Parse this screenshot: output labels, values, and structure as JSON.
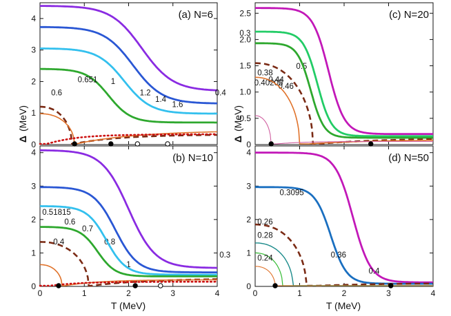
{
  "chart_data": [
    {
      "panel": "a",
      "type": "line",
      "title": "(a) N=6",
      "xlim": [
        0,
        4
      ],
      "ylim": [
        0,
        4.5
      ],
      "xticks": [],
      "yticks": [
        "0",
        "1",
        "2",
        "3",
        "4"
      ],
      "series": [
        {
          "name": "1.6",
          "label": "1.6",
          "color": "#8a2be2",
          "width": 2.8,
          "style": "solid",
          "D0": 4.4,
          "Dinf": 1.7,
          "Tc": 2.3,
          "w": 0.35
        },
        {
          "name": "1.4",
          "label": "1.4",
          "color": "#2a57d4",
          "width": 2.8,
          "style": "solid",
          "D0": 3.73,
          "Dinf": 1.3,
          "Tc": 2.1,
          "w": 0.33
        },
        {
          "name": "1.2",
          "label": "1.2",
          "color": "#33c0ee",
          "width": 2.8,
          "style": "solid",
          "D0": 3.05,
          "Dinf": 0.98,
          "Tc": 1.9,
          "w": 0.3
        },
        {
          "name": "1",
          "label": "1",
          "color": "#2ea82e",
          "width": 2.8,
          "style": "solid",
          "D0": 2.4,
          "Dinf": 0.7,
          "Tc": 1.55,
          "w": 0.25
        },
        {
          "name": "0.651",
          "label": "0.651",
          "color": "#7a2a14",
          "width": 2.6,
          "style": "dashed",
          "D0": 1.2,
          "Tc": 0.72,
          "Dinf": 0.32,
          "Tr": 1.05
        },
        {
          "name": "0.6",
          "label": "0.6",
          "color": "#e0722a",
          "width": 1.6,
          "style": "solid",
          "D0": 0.98,
          "Tc": 0.78,
          "Dinf": 0.45,
          "Tr": 1.4
        },
        {
          "name": "0.4",
          "label": "0.4",
          "color": "#cc1111",
          "width": 2.6,
          "style": "dotted",
          "D0": 0,
          "Dinf": 0.35,
          "Tr": 0.5
        }
      ],
      "points": [
        {
          "T": 0.78,
          "fill": "black"
        },
        {
          "T": 1.6,
          "fill": "black"
        },
        {
          "T": 2.2,
          "fill": "white"
        },
        {
          "T": 2.88,
          "fill": "white"
        }
      ]
    },
    {
      "panel": "b",
      "type": "line",
      "title": "(b) N=10",
      "xlim": [
        0,
        4
      ],
      "ylim": [
        0,
        4.2
      ],
      "xticks": [
        "0",
        "1",
        "2",
        "3",
        "4"
      ],
      "yticks": [
        "0",
        "1",
        "2",
        "3",
        "4"
      ],
      "series": [
        {
          "name": "1",
          "label": "1",
          "color": "#8a2be2",
          "width": 2.8,
          "style": "solid",
          "D0": 4.07,
          "Dinf": 0.55,
          "Tc": 2.0,
          "w": 0.3
        },
        {
          "name": "0.8",
          "label": "0.8",
          "color": "#2a57d4",
          "width": 2.8,
          "style": "solid",
          "D0": 2.97,
          "Dinf": 0.42,
          "Tc": 1.7,
          "w": 0.25
        },
        {
          "name": "0.7",
          "label": "0.7",
          "color": "#33c0ee",
          "width": 2.8,
          "style": "solid",
          "D0": 2.4,
          "Dinf": 0.35,
          "Tc": 1.5,
          "w": 0.22
        },
        {
          "name": "0.6",
          "label": "0.6",
          "color": "#2ea82e",
          "width": 2.8,
          "style": "solid",
          "D0": 1.78,
          "Dinf": 0.3,
          "Tc": 1.3,
          "w": 0.2
        },
        {
          "name": "0.51815",
          "label": "0.51815",
          "color": "#7a2a14",
          "width": 2.6,
          "style": "dashed",
          "D0": 1.33,
          "Tc": 1.1,
          "Dinf": 0.24,
          "Tr": 1.3
        },
        {
          "name": "0.4",
          "label": "0.4",
          "color": "#e0722a",
          "width": 1.6,
          "style": "solid",
          "D0": 0.65,
          "Tc": 0.5,
          "Dinf": 0.2,
          "Tr": 0.8
        },
        {
          "name": "0.3",
          "label": "0.3",
          "color": "#cc1111",
          "width": 2.6,
          "style": "dotted",
          "D0": 0,
          "Dinf": 0.15,
          "Tr": 0.5
        }
      ],
      "points": [
        {
          "T": 0.42,
          "fill": "black"
        },
        {
          "T": 2.15,
          "fill": "black"
        },
        {
          "T": 2.72,
          "fill": "white"
        }
      ]
    },
    {
      "panel": "c",
      "type": "line",
      "title": "(c) N=20",
      "xlim": [
        0,
        4
      ],
      "ylim": [
        0,
        2.7
      ],
      "xticks": [],
      "yticks": [
        "0",
        "0.5",
        "1.0",
        "1.5",
        "2.0",
        "2.5"
      ],
      "series": [
        {
          "name": "0.5",
          "label": "0.5",
          "color": "#c218b8",
          "width": 2.8,
          "style": "solid",
          "D0": 2.6,
          "Dinf": 0.2,
          "Tc": 1.65,
          "w": 0.18
        },
        {
          "name": "0.46",
          "label": "0.46",
          "color": "#22cc66",
          "width": 2.8,
          "style": "solid",
          "D0": 2.15,
          "Dinf": 0.16,
          "Tc": 1.4,
          "w": 0.16
        },
        {
          "name": "0.44",
          "label": "0.44",
          "color": "#2ea82e",
          "width": 2.8,
          "style": "solid",
          "D0": 1.93,
          "Dinf": 0.13,
          "Tc": 1.25,
          "w": 0.15
        },
        {
          "name": "0.40205",
          "label": "0.40205",
          "color": "#7a2a14",
          "width": 2.6,
          "style": "dashed",
          "D0": 1.55,
          "Tc": 1.3,
          "Dinf": 0.12,
          "Tr": 1.45
        },
        {
          "name": "0.38",
          "label": "0.38",
          "color": "#e0722a",
          "width": 1.6,
          "style": "solid",
          "D0": 1.28,
          "Tc": 1.0,
          "Dinf": 0.1,
          "Tr": 1.7
        },
        {
          "name": "0.3",
          "label": "0.3",
          "color": "#d05fa0",
          "width": 1.1,
          "style": "solid",
          "D0": 0.55,
          "Tc": 0.36,
          "Dinf": 0.06,
          "Tr": 0.6
        }
      ],
      "points": [
        {
          "T": 0.36,
          "fill": "black"
        },
        {
          "T": 2.6,
          "fill": "black"
        }
      ]
    },
    {
      "panel": "d",
      "type": "line",
      "title": "(d) N=50",
      "xlim": [
        0,
        4
      ],
      "ylim": [
        0,
        4.2
      ],
      "xticks": [
        "0",
        "1",
        "2",
        "3",
        "4"
      ],
      "yticks": [
        "0",
        "1",
        "2",
        "3",
        "4"
      ],
      "series": [
        {
          "name": "0.4",
          "label": "0.4",
          "color": "#c218b8",
          "width": 2.8,
          "style": "solid",
          "D0": 4.0,
          "Dinf": 0.12,
          "Tc": 2.2,
          "w": 0.2
        },
        {
          "name": "0.36",
          "label": "0.36",
          "color": "#1a6fc0",
          "width": 2.8,
          "style": "solid",
          "D0": 2.97,
          "Dinf": 0.08,
          "Tc": 1.7,
          "w": 0.18
        },
        {
          "name": "0.3095",
          "label": "0.3095",
          "color": "#7a2a14",
          "width": 2.6,
          "style": "dashed",
          "D0": 1.85,
          "Tc": 1.15,
          "Dinf": 0.1,
          "Tr": 1.5
        },
        {
          "name": "0.28",
          "label": "0.28",
          "color": "#1a8a8a",
          "width": 1.4,
          "style": "solid",
          "D0": 1.3,
          "Tc": 0.85,
          "Dinf": 0,
          "Tr": 3
        },
        {
          "name": "0.26",
          "label": "0.26",
          "color": "#33bb33",
          "width": 1.2,
          "style": "solid",
          "D0": 1.0,
          "Tc": 0.62,
          "Dinf": 0,
          "Tr": 3
        },
        {
          "name": "0.24",
          "label": "0.24",
          "color": "#e0722a",
          "width": 1.1,
          "style": "solid",
          "D0": 0.6,
          "Tc": 0.45,
          "Dinf": 0,
          "Tr": 3
        }
      ],
      "points": [
        {
          "T": 0.45,
          "fill": "black"
        },
        {
          "T": 3.05,
          "fill": "black"
        }
      ]
    }
  ],
  "axes": {
    "xlabel": "T  (MeV)",
    "ylabel": "(MeV)",
    "ysymbol": "Δ"
  }
}
